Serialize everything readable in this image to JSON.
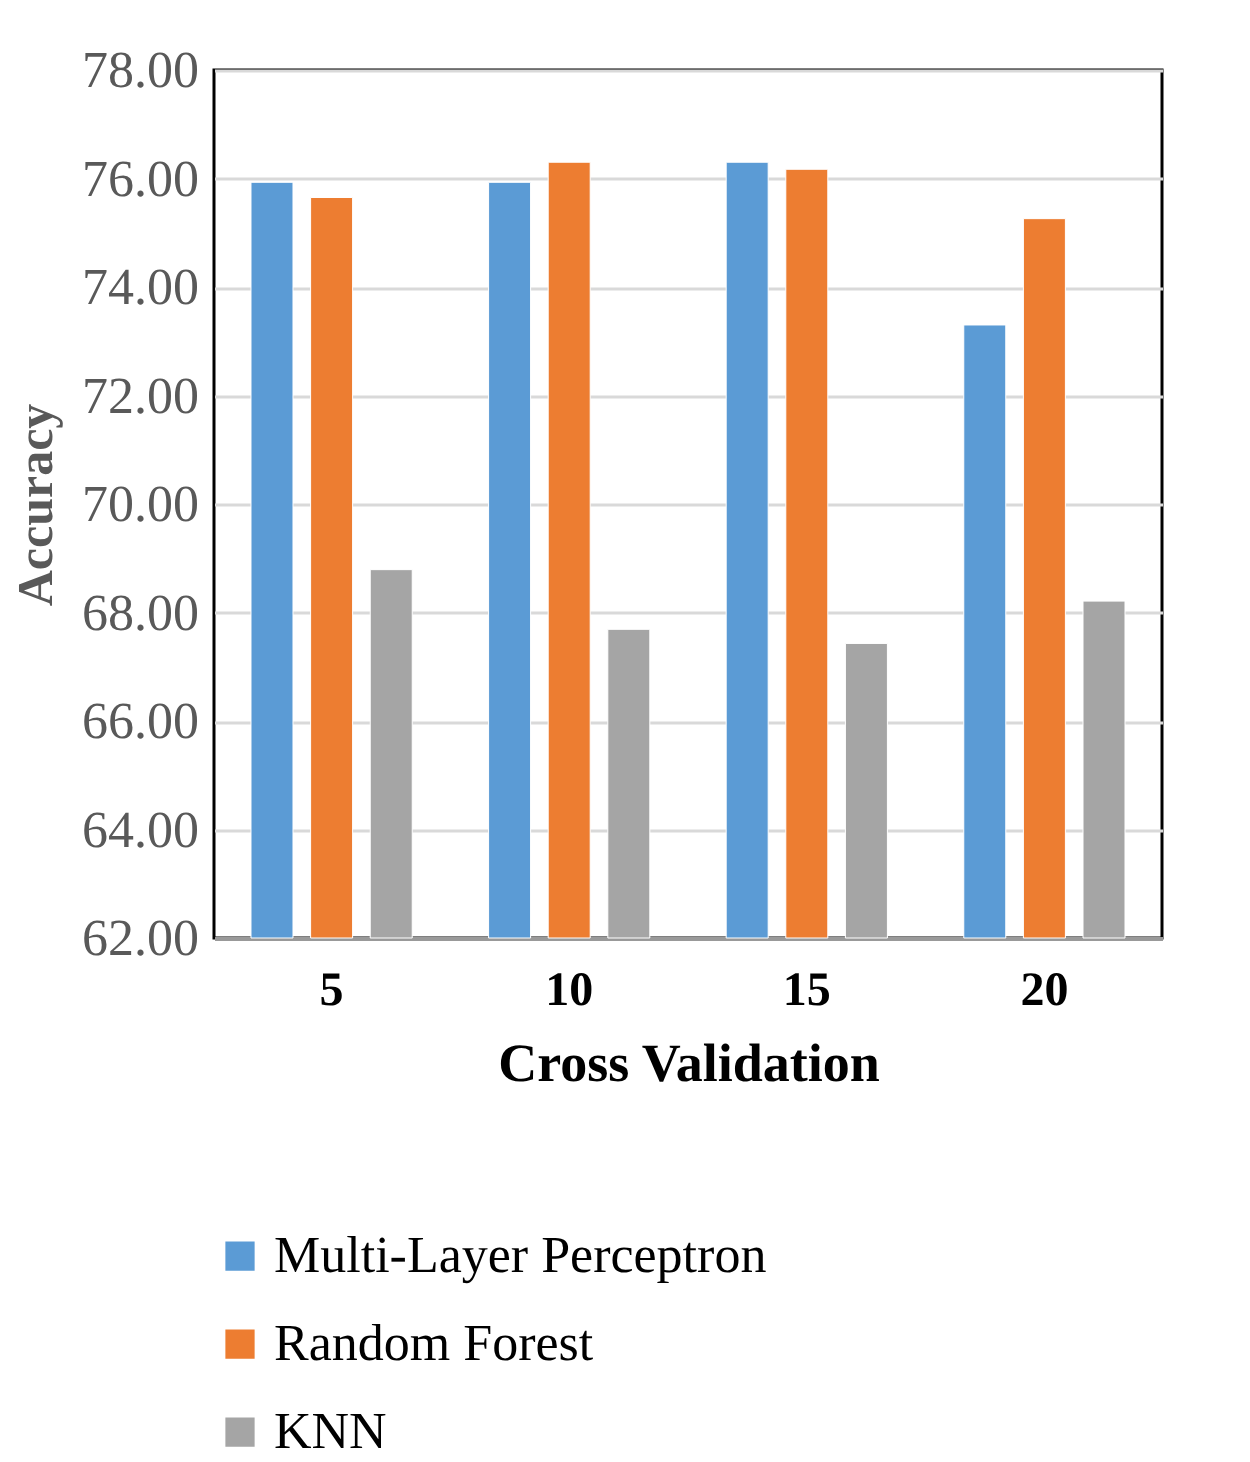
{
  "chart_data": {
    "type": "bar",
    "xlabel": "Cross Validation",
    "ylabel": "Accuracy",
    "categories": [
      "5",
      "10",
      "15",
      "20"
    ],
    "series": [
      {
        "name": "Multi-Layer Perceptron",
        "color": "#5b9bd5",
        "values": [
          75.93,
          75.93,
          76.3,
          73.3
        ]
      },
      {
        "name": "Random Forest",
        "color": "#ed7d31",
        "values": [
          75.65,
          76.3,
          76.17,
          75.26
        ]
      },
      {
        "name": "KNN",
        "color": "#a5a5a5",
        "values": [
          68.79,
          67.69,
          67.43,
          68.21
        ]
      }
    ],
    "ylim": [
      62,
      78
    ],
    "yticks": [
      {
        "value": 62,
        "label": "62.00"
      },
      {
        "value": 64,
        "label": "64.00"
      },
      {
        "value": 66,
        "label": "66.00"
      },
      {
        "value": 68,
        "label": "68.00"
      },
      {
        "value": 70,
        "label": "70.00"
      },
      {
        "value": 72,
        "label": "72.00"
      },
      {
        "value": 74,
        "label": "74.00"
      },
      {
        "value": 76,
        "label": "76.00"
      },
      {
        "value": 78,
        "label": "78.00"
      }
    ],
    "grid": "y",
    "legend": "bottom"
  }
}
